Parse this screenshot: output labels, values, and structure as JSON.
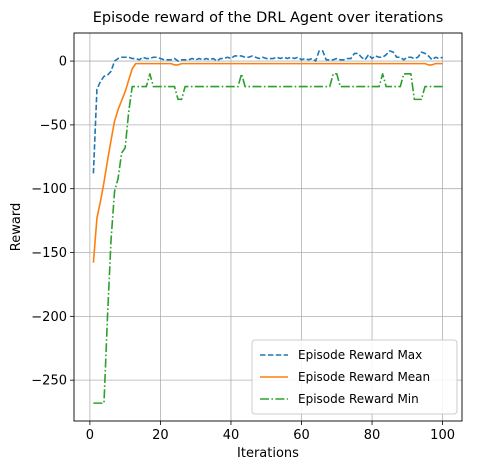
{
  "chart_data": {
    "type": "line",
    "title": "Episode reward of the DRL Agent over iterations",
    "xlabel": "Iterations",
    "ylabel": "Reward",
    "xlim": [
      -4.5,
      105.5
    ],
    "ylim": [
      -282,
      22
    ],
    "xticks": [
      0,
      20,
      40,
      60,
      80,
      100
    ],
    "yticks": [
      0,
      -50,
      -100,
      -150,
      -200,
      -250
    ],
    "ytick_labels": [
      "0",
      "−50",
      "−100",
      "−150",
      "−200",
      "−250"
    ],
    "grid": true,
    "legend_position": "lower-right",
    "series": [
      {
        "name": "Episode Reward Max",
        "color": "#1f77b4",
        "style": "dashed",
        "x": [
          1,
          2,
          3,
          4,
          5,
          6,
          7,
          8,
          9,
          10,
          11,
          12,
          13,
          14,
          15,
          16,
          17,
          18,
          19,
          20,
          21,
          22,
          23,
          24,
          25,
          26,
          27,
          28,
          29,
          30,
          31,
          32,
          33,
          34,
          35,
          36,
          37,
          38,
          39,
          40,
          41,
          42,
          43,
          44,
          45,
          46,
          47,
          48,
          49,
          50,
          51,
          52,
          53,
          54,
          55,
          56,
          57,
          58,
          59,
          60,
          61,
          62,
          63,
          64,
          65,
          66,
          67,
          68,
          69,
          70,
          71,
          72,
          73,
          74,
          75,
          76,
          77,
          78,
          79,
          80,
          81,
          82,
          83,
          84,
          85,
          86,
          87,
          88,
          89,
          90,
          91,
          92,
          93,
          94,
          95,
          96,
          97,
          98,
          99,
          100
        ],
        "y": [
          -88,
          -22,
          -16,
          -12,
          -11,
          -8,
          0,
          2,
          3,
          3,
          3,
          2,
          2,
          1,
          3,
          2,
          2,
          3,
          3,
          2,
          1,
          1,
          1,
          2,
          0,
          1,
          1,
          1,
          2,
          1,
          2,
          1,
          2,
          1,
          2,
          0,
          2,
          2,
          3,
          2,
          4,
          4,
          4,
          3,
          3,
          4,
          3,
          2,
          3,
          2,
          2,
          2,
          3,
          2,
          3,
          2,
          3,
          2,
          3,
          1,
          2,
          1,
          2,
          0,
          8,
          8,
          1,
          1,
          1,
          2,
          1,
          1,
          2,
          2,
          6,
          6,
          3,
          1,
          5,
          2,
          4,
          3,
          3,
          5,
          8,
          7,
          3,
          3,
          1,
          3,
          3,
          2,
          3,
          7,
          6,
          4,
          1,
          3,
          2,
          3
        ]
      },
      {
        "name": "Episode Reward Mean",
        "color": "#ff7f0e",
        "style": "solid",
        "x": [
          1,
          2,
          3,
          4,
          5,
          6,
          7,
          8,
          9,
          10,
          11,
          12,
          13,
          14,
          15,
          16,
          17,
          18,
          19,
          20,
          21,
          22,
          23,
          24,
          25,
          26,
          27,
          28,
          29,
          30,
          31,
          32,
          33,
          34,
          35,
          36,
          37,
          38,
          39,
          40,
          41,
          42,
          43,
          44,
          45,
          46,
          47,
          48,
          49,
          50,
          51,
          52,
          53,
          54,
          55,
          56,
          57,
          58,
          59,
          60,
          61,
          62,
          63,
          64,
          65,
          66,
          67,
          68,
          69,
          70,
          71,
          72,
          73,
          74,
          75,
          76,
          77,
          78,
          79,
          80,
          81,
          82,
          83,
          84,
          85,
          86,
          87,
          88,
          89,
          90,
          91,
          92,
          93,
          94,
          95,
          96,
          97,
          98,
          99,
          100
        ],
        "y": [
          -158,
          -123,
          -110,
          -95,
          -78,
          -62,
          -47,
          -38,
          -31,
          -24,
          -15,
          -6,
          -2,
          -2,
          -2,
          -2,
          -2,
          -2,
          -2,
          -2,
          -2,
          -2,
          -2,
          -3,
          -3,
          -2,
          -2,
          -2,
          -2,
          -2,
          -2,
          -2,
          -2,
          -2,
          -2,
          -2,
          -2,
          -2,
          -2,
          -2,
          -2,
          -2,
          -2,
          -2,
          -2,
          -2,
          -2,
          -2,
          -2,
          -2,
          -2,
          -2,
          -2,
          -2,
          -2,
          -2,
          -2,
          -2,
          -2,
          -2,
          -2,
          -2,
          -2,
          -2,
          -2,
          -2,
          -2,
          -2,
          -2,
          -2,
          -2,
          -2,
          -2,
          -2,
          -2,
          -2,
          -2,
          -2,
          -2,
          -2,
          -2,
          -2,
          -2,
          -2,
          -2,
          -2,
          -2,
          -2,
          -2,
          -2,
          -2,
          -2,
          -2,
          -2,
          -2,
          -3,
          -3,
          -2,
          -2,
          -2
        ]
      },
      {
        "name": "Episode Reward Min",
        "color": "#2ca02c",
        "style": "dashdot",
        "x": [
          1,
          2,
          3,
          4,
          5,
          6,
          7,
          8,
          9,
          10,
          11,
          12,
          13,
          14,
          15,
          16,
          17,
          18,
          19,
          20,
          21,
          22,
          23,
          24,
          25,
          26,
          27,
          28,
          29,
          30,
          31,
          32,
          33,
          34,
          35,
          36,
          37,
          38,
          39,
          40,
          41,
          42,
          43,
          44,
          45,
          46,
          47,
          48,
          49,
          50,
          51,
          52,
          53,
          54,
          55,
          56,
          57,
          58,
          59,
          60,
          61,
          62,
          63,
          64,
          65,
          66,
          67,
          68,
          69,
          70,
          71,
          72,
          73,
          74,
          75,
          76,
          77,
          78,
          79,
          80,
          81,
          82,
          83,
          84,
          85,
          86,
          87,
          88,
          89,
          90,
          91,
          92,
          93,
          94,
          95,
          96,
          97,
          98,
          99,
          100
        ],
        "y": [
          -268,
          -268,
          -268,
          -268,
          -200,
          -140,
          -102,
          -92,
          -72,
          -68,
          -40,
          -20,
          -20,
          -20,
          -20,
          -20,
          -10,
          -20,
          -20,
          -20,
          -20,
          -20,
          -20,
          -20,
          -30,
          -30,
          -20,
          -20,
          -20,
          -20,
          -20,
          -20,
          -20,
          -20,
          -20,
          -20,
          -20,
          -20,
          -20,
          -20,
          -20,
          -20,
          -10,
          -20,
          -20,
          -20,
          -20,
          -20,
          -20,
          -20,
          -20,
          -20,
          -20,
          -20,
          -20,
          -20,
          -20,
          -20,
          -20,
          -20,
          -20,
          -20,
          -20,
          -20,
          -20,
          -20,
          -20,
          -20,
          -10,
          -10,
          -20,
          -20,
          -20,
          -20,
          -20,
          -20,
          -20,
          -20,
          -20,
          -20,
          -20,
          -20,
          -10,
          -20,
          -20,
          -20,
          -20,
          -20,
          -10,
          -10,
          -10,
          -30,
          -30,
          -30,
          -20,
          -20,
          -20,
          -20,
          -20,
          -20
        ]
      }
    ]
  }
}
